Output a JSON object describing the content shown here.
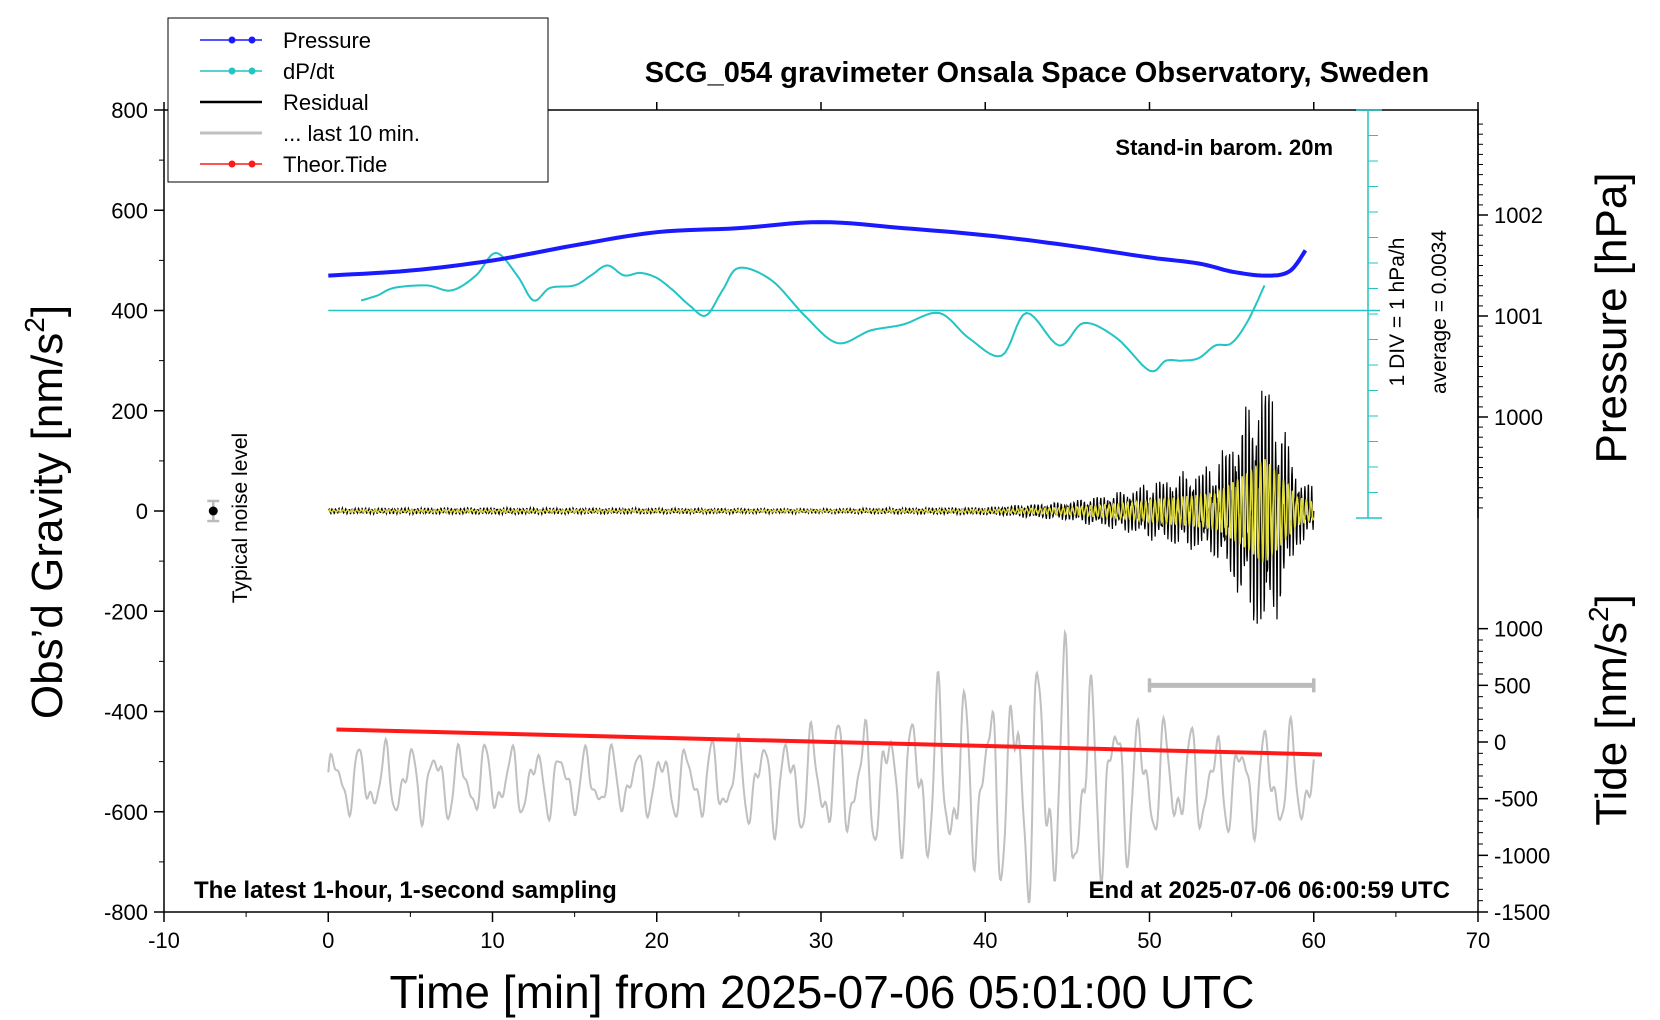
{
  "chart_data": {
    "type": "line",
    "title": "SCG_054 gravimeter Onsala Space Observatory, Sweden",
    "xlabel": "Time [min] from 2025-07-06 05:01:00 UTC",
    "ylabel_left_main": "Obs’d Gravity [nm/s",
    "ylabel_left_sup": "2",
    "ylabel_left_tail": "]",
    "ylabel_right_pressure": "Pressure [hPa]",
    "ylabel_right_tide_main": "Tide [nm/s",
    "ylabel_right_tide_sup": "2",
    "ylabel_right_tide_tail": "]",
    "xlim": [
      -10,
      70
    ],
    "ylim": [
      -800,
      800
    ],
    "pressure_lim": [
      999,
      1003
    ],
    "tide_lim": [
      -1500,
      1500
    ],
    "x_ticks": [
      "-10",
      "0",
      "10",
      "20",
      "30",
      "40",
      "50",
      "60",
      "70"
    ],
    "y_ticks_left": [
      "800",
      "600",
      "400",
      "200",
      "0",
      "-200",
      "-400",
      "-600",
      "-800"
    ],
    "y_ticks_pressure": [
      "1002",
      "1001",
      "1000"
    ],
    "y_ticks_tide": [
      "1000",
      "500",
      "0",
      "-500",
      "-1000",
      "-1500"
    ],
    "annotations": {
      "barometer": "Stand-in barom. 20m",
      "noise": "Typical noise level",
      "sampling": "The latest 1-hour, 1-second sampling",
      "end_time": "End at 2025-07-06 06:00:59 UTC",
      "div": "1 DIV = 1 hPa/h",
      "average": "average = 0.0034"
    },
    "legend": {
      "placement": "top-left",
      "entries": [
        "Pressure",
        "dP/dt",
        "Residual",
        "... last 10 min.",
        "Theor.Tide"
      ]
    },
    "colors": {
      "pressure": "#1a1aff",
      "dpdt": "#22c4c4",
      "residual": "#000000",
      "last10": "#c0c0c0",
      "theor_tide": "#ff1a1a",
      "filtered": "#e0dc3a",
      "noise_bar": "#bbbbbb"
    },
    "series": [
      {
        "name": "Pressure",
        "axis": "pressure",
        "x": [
          0,
          5,
          10,
          15,
          20,
          25,
          30,
          35,
          40,
          45,
          50,
          53,
          55,
          57,
          58.5,
          59.5
        ],
        "y": [
          1001.4,
          1001.45,
          1001.55,
          1001.7,
          1001.83,
          1001.87,
          1001.93,
          1001.87,
          1001.8,
          1001.7,
          1001.58,
          1001.52,
          1001.44,
          1001.4,
          1001.44,
          1001.65
        ]
      },
      {
        "name": "dP/dt",
        "axis": "dpdt_offset",
        "x": [
          2,
          3,
          4,
          6,
          7.5,
          9,
          10.2,
          11.5,
          12.5,
          13.5,
          15,
          16,
          17,
          18,
          19,
          20,
          21,
          22,
          23,
          24,
          25,
          27,
          29,
          31,
          33,
          35,
          37.2,
          39,
          41,
          42.5,
          44.5,
          46,
          48,
          50,
          51,
          52,
          53,
          54,
          55,
          56,
          57
        ],
        "y": [
          420,
          430,
          445,
          450,
          440,
          470,
          515,
          470,
          420,
          445,
          450,
          470,
          490,
          470,
          475,
          465,
          440,
          410,
          390,
          440,
          485,
          460,
          390,
          335,
          360,
          372,
          395,
          345,
          310,
          395,
          330,
          375,
          345,
          280,
          300,
          300,
          305,
          330,
          335,
          380,
          450
        ]
      },
      {
        "name": "Residual",
        "axis": "left",
        "x": [
          0,
          10,
          20,
          30,
          40,
          45,
          48,
          50,
          52,
          54,
          55,
          56,
          57,
          58,
          59,
          60
        ],
        "amplitude": [
          6,
          7,
          6,
          5,
          8,
          20,
          40,
          60,
          80,
          100,
          160,
          220,
          300,
          200,
          80,
          50
        ]
      },
      {
        "name": "... last 10 min.",
        "axis": "tide",
        "x": [
          0,
          5,
          10,
          15,
          20,
          25,
          30,
          35,
          37,
          40,
          43,
          45,
          47,
          50,
          55,
          58,
          60
        ],
        "amplitude": [
          350,
          400,
          380,
          350,
          350,
          450,
          600,
          700,
          1000,
          900,
          1300,
          1400,
          1000,
          650,
          500,
          600,
          500
        ],
        "center": -350
      },
      {
        "name": "Theor.Tide",
        "axis": "tide",
        "x": [
          0.5,
          60.5
        ],
        "y": [
          110,
          -110
        ]
      }
    ],
    "noise_level": {
      "x": -7,
      "y": 0,
      "error": 20
    },
    "last10_range": {
      "x": [
        50,
        60
      ],
      "tide_y": 500
    }
  }
}
